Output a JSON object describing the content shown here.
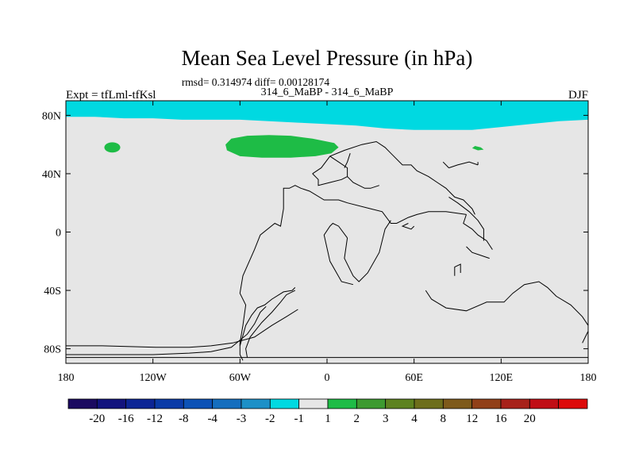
{
  "chart_data": {
    "type": "heatmap",
    "title": "Mean Sea Level Pressure (in hPa)",
    "subtitle_stats": "rmsd= 0.314974 diff= 0.00128174",
    "subtitle_center": "314_6_MaBP - 314_6_MaBP",
    "left_label": "Expt = tfLml-tfKsl",
    "right_label": "DJF",
    "xlim": [
      -180,
      180
    ],
    "ylim": [
      -90,
      90
    ],
    "x_ticks": [
      {
        "value": -180,
        "label": "180"
      },
      {
        "value": -120,
        "label": "120W"
      },
      {
        "value": -60,
        "label": "60W"
      },
      {
        "value": 0,
        "label": "0"
      },
      {
        "value": 60,
        "label": "60E"
      },
      {
        "value": 120,
        "label": "120E"
      },
      {
        "value": 180,
        "label": "180"
      }
    ],
    "y_ticks": [
      {
        "value": 80,
        "label": "80N"
      },
      {
        "value": 40,
        "label": "40N"
      },
      {
        "value": 0,
        "label": "0"
      },
      {
        "value": -40,
        "label": "40S"
      },
      {
        "value": -80,
        "label": "80S"
      }
    ],
    "background_value_range": "-1 to 1",
    "background_color": "#e6e6e6",
    "regions": [
      {
        "name": "arctic-band",
        "value_range": "-2 to -1",
        "color": "#00d9e1",
        "polygon": [
          [
            -180,
            90
          ],
          [
            180,
            90
          ],
          [
            180,
            77
          ],
          [
            160,
            76
          ],
          [
            140,
            74
          ],
          [
            120,
            72
          ],
          [
            100,
            70
          ],
          [
            80,
            70
          ],
          [
            60,
            70
          ],
          [
            40,
            71
          ],
          [
            20,
            73
          ],
          [
            0,
            74
          ],
          [
            -20,
            75
          ],
          [
            -40,
            76
          ],
          [
            -60,
            77
          ],
          [
            -80,
            77
          ],
          [
            -100,
            77
          ],
          [
            -120,
            78
          ],
          [
            -140,
            78
          ],
          [
            -160,
            79
          ],
          [
            -180,
            79
          ]
        ]
      },
      {
        "name": "north-pacific-blob",
        "value_range": "1 to 2",
        "color": "#1ebc46",
        "ellipse": {
          "cx": -148,
          "cy": 58,
          "rx": 5.5,
          "ry": 3.5
        }
      },
      {
        "name": "north-atlantic-blob",
        "value_range": "1 to 2",
        "color": "#1ebc46",
        "polygon": [
          [
            -70,
            60
          ],
          [
            -66,
            64
          ],
          [
            -55,
            66
          ],
          [
            -40,
            66.5
          ],
          [
            -25,
            66
          ],
          [
            -10,
            64
          ],
          [
            5,
            61
          ],
          [
            8,
            58
          ],
          [
            3,
            54
          ],
          [
            -8,
            52
          ],
          [
            -25,
            51
          ],
          [
            -45,
            51
          ],
          [
            -60,
            52
          ],
          [
            -69,
            56
          ]
        ]
      },
      {
        "name": "siberia-blob",
        "value_range": "1 to 2",
        "color": "#1ebc46",
        "polygon": [
          [
            102,
            59
          ],
          [
            106,
            58
          ],
          [
            108,
            56.5
          ],
          [
            104,
            56
          ],
          [
            100,
            57.5
          ]
        ]
      }
    ],
    "coastlines": [
      [
        [
          -180,
          -78
        ],
        [
          -155,
          -78
        ],
        [
          -118,
          -79
        ],
        [
          -95,
          -79
        ],
        [
          -80,
          -78
        ],
        [
          -65,
          -76
        ],
        [
          -50,
          -72
        ],
        [
          -38,
          -64
        ],
        [
          -28,
          -58
        ],
        [
          -20,
          -53
        ]
      ],
      [
        [
          -180,
          -84
        ],
        [
          -120,
          -84
        ],
        [
          -95,
          -83
        ],
        [
          -80,
          -82
        ],
        [
          -66,
          -79
        ],
        [
          -55,
          -70
        ],
        [
          -50,
          -63
        ],
        [
          -46,
          -55
        ],
        [
          -42,
          -51
        ]
      ],
      [
        [
          -60,
          -78
        ],
        [
          -58,
          -71
        ],
        [
          -56,
          -64
        ],
        [
          -52,
          -57
        ],
        [
          -48,
          -52
        ],
        [
          -43,
          -50
        ],
        [
          -38,
          -46
        ],
        [
          -30,
          -41
        ],
        [
          -24,
          -40
        ],
        [
          -22,
          -38
        ]
      ],
      [
        [
          -180,
          -86
        ],
        [
          180,
          -86
        ]
      ],
      [
        [
          -55,
          -86
        ],
        [
          -56,
          -80
        ],
        [
          -53,
          -72
        ],
        [
          -45,
          -62
        ],
        [
          -38,
          -55
        ],
        [
          -32,
          -48
        ],
        [
          -28,
          -43
        ],
        [
          -22,
          -40
        ]
      ],
      [
        [
          -58,
          -88
        ],
        [
          -60,
          -84
        ],
        [
          -60,
          -76
        ],
        [
          -58,
          -64
        ],
        [
          -56,
          -50
        ],
        [
          -60,
          -42
        ],
        [
          -58,
          -30
        ],
        [
          -50,
          -12
        ],
        [
          -46,
          -2
        ],
        [
          -36,
          6
        ],
        [
          -32,
          4
        ],
        [
          -30,
          16
        ],
        [
          -30,
          30
        ],
        [
          -26,
          30
        ],
        [
          -22,
          32
        ],
        [
          -18,
          30
        ],
        [
          -12,
          28
        ],
        [
          -2,
          22
        ],
        [
          8,
          22
        ],
        [
          14,
          20
        ],
        [
          30,
          16
        ],
        [
          38,
          14
        ],
        [
          44,
          6
        ],
        [
          48,
          6
        ],
        [
          56,
          10
        ],
        [
          62,
          12
        ],
        [
          70,
          14
        ],
        [
          82,
          14
        ],
        [
          96,
          12
        ]
      ],
      [
        [
          96,
          12
        ],
        [
          94,
          6
        ],
        [
          100,
          2
        ],
        [
          104,
          -2
        ],
        [
          110,
          -6
        ],
        [
          114,
          -12
        ]
      ],
      [
        [
          14,
          -4
        ],
        [
          12,
          -18
        ],
        [
          18,
          -30
        ],
        [
          22,
          -34
        ],
        [
          28,
          -28
        ],
        [
          36,
          -14
        ],
        [
          40,
          2
        ],
        [
          44,
          8
        ]
      ],
      [
        [
          14,
          -4
        ],
        [
          8,
          4
        ],
        [
          4,
          6
        ],
        [
          2,
          4
        ],
        [
          -2,
          -2
        ],
        [
          2,
          -20
        ],
        [
          10,
          -34
        ],
        [
          18,
          -36
        ]
      ],
      [
        [
          68,
          -40
        ],
        [
          72,
          -46
        ],
        [
          82,
          -52
        ],
        [
          96,
          -54
        ],
        [
          110,
          -48
        ],
        [
          122,
          -48
        ],
        [
          128,
          -42
        ],
        [
          136,
          -36
        ],
        [
          146,
          -34
        ],
        [
          152,
          -38
        ],
        [
          158,
          -44
        ],
        [
          168,
          -50
        ],
        [
          176,
          -58
        ],
        [
          180,
          -64
        ]
      ],
      [
        [
          176,
          -76
        ],
        [
          178,
          -72
        ],
        [
          180,
          -68
        ]
      ],
      [
        [
          -10,
          40
        ],
        [
          -4,
          44
        ],
        [
          2,
          52
        ],
        [
          12,
          56
        ],
        [
          24,
          60
        ],
        [
          34,
          62
        ],
        [
          40,
          58
        ],
        [
          44,
          54
        ],
        [
          52,
          46
        ],
        [
          58,
          46
        ],
        [
          62,
          42
        ],
        [
          70,
          38
        ],
        [
          76,
          34
        ],
        [
          82,
          30
        ],
        [
          84,
          28
        ]
      ],
      [
        [
          2,
          52
        ],
        [
          8,
          48
        ],
        [
          14,
          44
        ],
        [
          14,
          38
        ],
        [
          18,
          34
        ],
        [
          26,
          30
        ],
        [
          30,
          30
        ],
        [
          36,
          32
        ]
      ],
      [
        [
          -10,
          40
        ],
        [
          -6,
          36
        ],
        [
          -6,
          32
        ],
        [
          2,
          34
        ],
        [
          10,
          36
        ],
        [
          14,
          38
        ]
      ],
      [
        [
          84,
          28
        ],
        [
          88,
          24
        ],
        [
          94,
          22
        ],
        [
          100,
          16
        ],
        [
          102,
          12
        ]
      ],
      [
        [
          84,
          24
        ],
        [
          90,
          20
        ],
        [
          98,
          14
        ],
        [
          104,
          8
        ],
        [
          108,
          2
        ],
        [
          108,
          -6
        ]
      ],
      [
        [
          96,
          -10
        ],
        [
          100,
          -14
        ],
        [
          106,
          -16
        ],
        [
          112,
          -18
        ]
      ],
      [
        [
          84,
          44
        ],
        [
          90,
          46
        ],
        [
          98,
          48
        ],
        [
          104,
          46
        ]
      ],
      [
        [
          84,
          44
        ],
        [
          80,
          48
        ]
      ],
      [
        [
          56,
          6
        ],
        [
          52,
          4
        ],
        [
          58,
          2
        ],
        [
          60,
          4
        ]
      ],
      [
        [
          16,
          54
        ],
        [
          14,
          48
        ],
        [
          12,
          44
        ]
      ],
      [
        [
          88,
          -30
        ],
        [
          88,
          -24
        ],
        [
          92,
          -22
        ],
        [
          92,
          -28
        ]
      ],
      [
        [
          104,
          46
        ],
        [
          104,
          48
        ]
      ]
    ],
    "colorbar": {
      "colors": [
        "#1b0a60",
        "#12137d",
        "#0c2595",
        "#0a3ba7",
        "#0c52b6",
        "#156ebe",
        "#1d90c7",
        "#00d9e1",
        "#e6e6e6",
        "#1ebc46",
        "#3d9a30",
        "#5d8220",
        "#6d6e1c",
        "#7e5a1b",
        "#914019",
        "#a7221a",
        "#c00d15",
        "#dd0b0b"
      ],
      "labels": [
        "-20",
        "-16",
        "-12",
        "-8",
        "-4",
        "-3",
        "-2",
        "-1",
        "1",
        "2",
        "3",
        "4",
        "8",
        "12",
        "16",
        "20"
      ]
    }
  }
}
